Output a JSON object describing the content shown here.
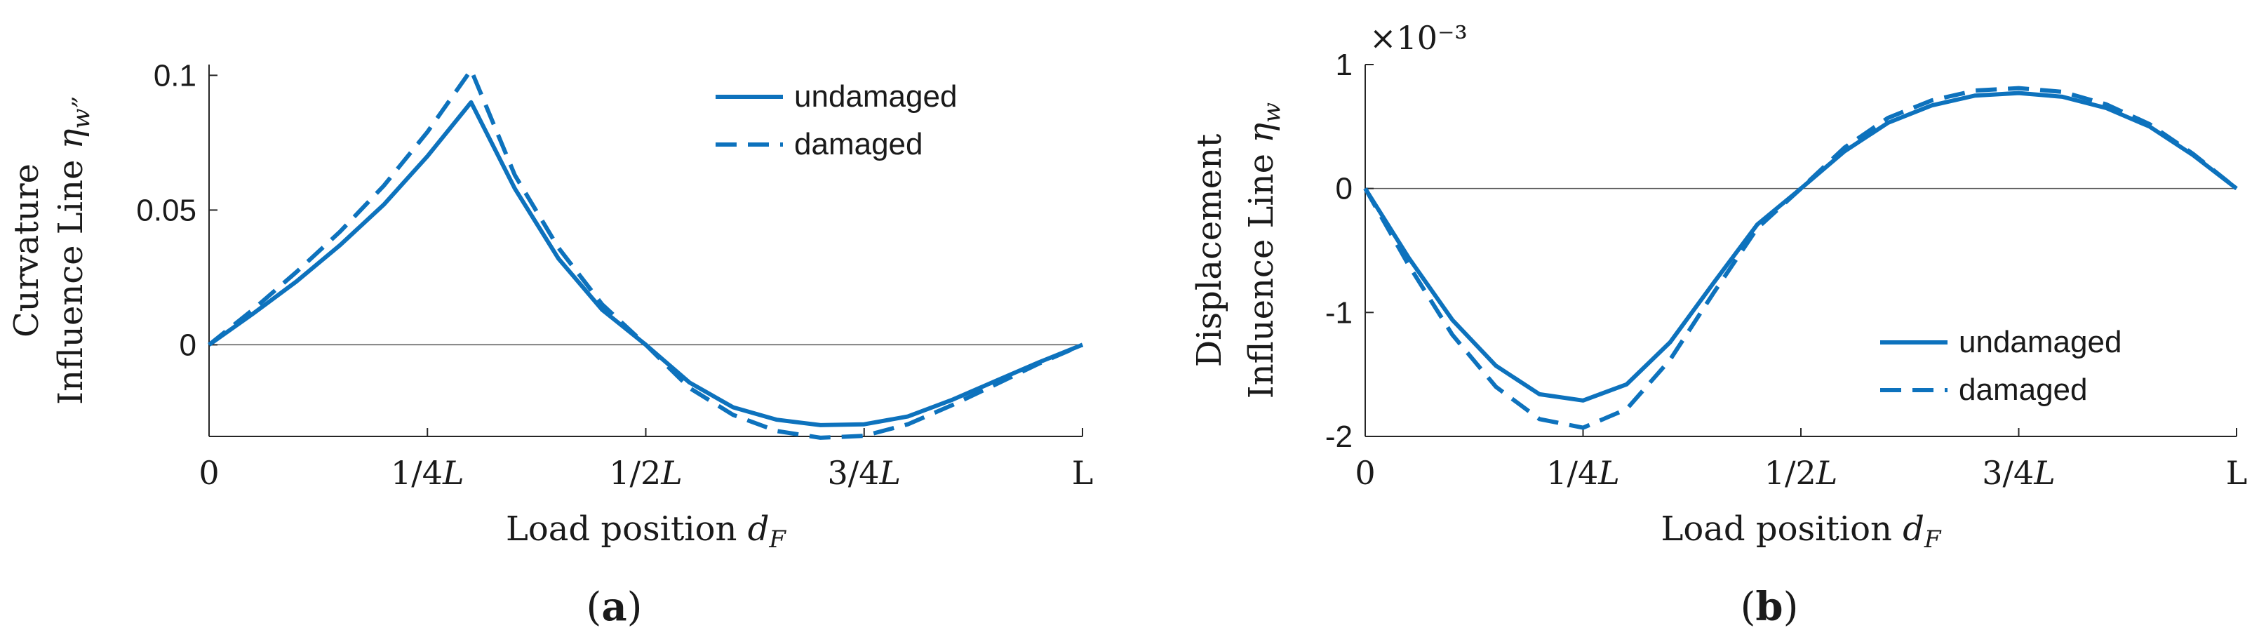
{
  "chart_data": [
    {
      "type": "line",
      "panel_label": "(a)",
      "xlabel": "Load position d_F",
      "ylabel_line1": "Curvature",
      "ylabel_line2": "Influence Line η_w”",
      "xticks": [
        {
          "value": 0.0,
          "label": "0"
        },
        {
          "value": 0.25,
          "label": "1/4L"
        },
        {
          "value": 0.5,
          "label": "1/2L"
        },
        {
          "value": 0.75,
          "label": "3/4L"
        },
        {
          "value": 1.0,
          "label": "L"
        }
      ],
      "yticks": [
        {
          "value": 0.0,
          "label": "0"
        },
        {
          "value": 0.05,
          "label": "0.05"
        },
        {
          "value": 0.1,
          "label": "0.1"
        }
      ],
      "xlim": [
        0,
        1
      ],
      "ylim": [
        -0.034,
        0.104
      ],
      "exponent": "",
      "legend_position": "top-right",
      "color": "#0d72bd",
      "series": [
        {
          "name": "undamaged",
          "style": "solid",
          "x": [
            0.0,
            0.05,
            0.1,
            0.15,
            0.2,
            0.25,
            0.3,
            0.35,
            0.4,
            0.45,
            0.5,
            0.55,
            0.6,
            0.65,
            0.7,
            0.75,
            0.8,
            0.85,
            0.9,
            0.95,
            1.0
          ],
          "values": [
            0.0,
            0.0115,
            0.0235,
            0.037,
            0.052,
            0.07,
            0.09,
            0.058,
            0.032,
            0.013,
            0.0,
            -0.014,
            -0.0232,
            -0.0278,
            -0.0298,
            -0.0295,
            -0.0266,
            -0.0205,
            -0.0135,
            -0.0065,
            0.0
          ]
        },
        {
          "name": "damaged",
          "style": "dashed",
          "x": [
            0.0,
            0.05,
            0.1,
            0.15,
            0.2,
            0.25,
            0.3,
            0.35,
            0.4,
            0.45,
            0.5,
            0.55,
            0.6,
            0.65,
            0.7,
            0.75,
            0.8,
            0.85,
            0.9,
            0.95,
            1.0
          ],
          "values": [
            0.0,
            0.013,
            0.027,
            0.042,
            0.059,
            0.079,
            0.102,
            0.063,
            0.036,
            0.015,
            0.0,
            -0.016,
            -0.026,
            -0.032,
            -0.0345,
            -0.0338,
            -0.0295,
            -0.0225,
            -0.0148,
            -0.007,
            0.0
          ]
        }
      ]
    },
    {
      "type": "line",
      "panel_label": "(b)",
      "xlabel": "Load position d_F",
      "ylabel_line1": "Displacement",
      "ylabel_line2": "Influence Line η_w",
      "xticks": [
        {
          "value": 0.0,
          "label": "0"
        },
        {
          "value": 0.25,
          "label": "1/4L"
        },
        {
          "value": 0.5,
          "label": "1/2L"
        },
        {
          "value": 0.75,
          "label": "3/4L"
        },
        {
          "value": 1.0,
          "label": "L"
        }
      ],
      "yticks": [
        {
          "value": -2,
          "label": "-2"
        },
        {
          "value": -1,
          "label": "-1"
        },
        {
          "value": 0,
          "label": "0"
        },
        {
          "value": 1,
          "label": "1"
        }
      ],
      "xlim": [
        0,
        1
      ],
      "ylim": [
        -2,
        1
      ],
      "exponent": "×10⁻³",
      "legend_position": "bottom-right",
      "color": "#0d72bd",
      "series": [
        {
          "name": "undamaged",
          "style": "solid",
          "x": [
            0.0,
            0.05,
            0.1,
            0.15,
            0.2,
            0.25,
            0.3,
            0.35,
            0.4,
            0.45,
            0.5,
            0.55,
            0.6,
            0.65,
            0.7,
            0.75,
            0.8,
            0.85,
            0.9,
            0.95,
            1.0
          ],
          "values": [
            0.0,
            -0.56,
            -1.06,
            -1.43,
            -1.66,
            -1.71,
            -1.58,
            -1.24,
            -0.76,
            -0.29,
            0.0,
            0.3,
            0.53,
            0.67,
            0.75,
            0.77,
            0.74,
            0.65,
            0.5,
            0.27,
            0.0
          ]
        },
        {
          "name": "damaged",
          "style": "dashed",
          "x": [
            0.0,
            0.05,
            0.1,
            0.15,
            0.2,
            0.25,
            0.3,
            0.35,
            0.4,
            0.45,
            0.5,
            0.55,
            0.6,
            0.65,
            0.7,
            0.75,
            0.8,
            0.85,
            0.9,
            0.95,
            1.0
          ],
          "values": [
            0.0,
            -0.62,
            -1.18,
            -1.6,
            -1.86,
            -1.93,
            -1.78,
            -1.38,
            -0.84,
            -0.32,
            0.0,
            0.33,
            0.57,
            0.71,
            0.79,
            0.81,
            0.78,
            0.68,
            0.52,
            0.28,
            0.0
          ]
        }
      ]
    }
  ]
}
